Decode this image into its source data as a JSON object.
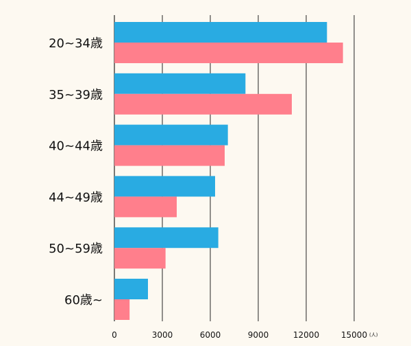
{
  "chart_data": {
    "type": "bar",
    "orientation": "horizontal",
    "categories": [
      "20~34歳",
      "35~39歳",
      "40~44歳",
      "44~49歳",
      "50~59歳",
      "60歳~"
    ],
    "series": [
      {
        "values": [
          13300,
          8200,
          7100,
          6300,
          6500,
          2100
        ]
      },
      {
        "values": [
          14300,
          11100,
          6900,
          3900,
          3200,
          950
        ]
      }
    ],
    "colors": [
      "#29abe2",
      "#ff7f8c"
    ],
    "xticks": [
      "0",
      "3000",
      "6000",
      "9000",
      "12000",
      "15000"
    ],
    "xunit": "(人)",
    "xlim": [
      0,
      15000
    ],
    "grid": true,
    "legend": false,
    "background": "#fdf9f1"
  }
}
